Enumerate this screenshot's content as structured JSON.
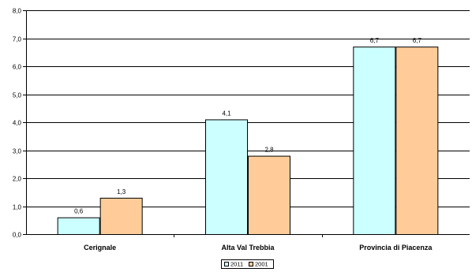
{
  "chart_data": {
    "type": "bar",
    "categories": [
      "Cerignale",
      "Alta Val Trebbia",
      "Provincia di Piacenza"
    ],
    "series": [
      {
        "name": "2011",
        "values": [
          0.6,
          4.1,
          6.7
        ],
        "value_labels": [
          "0,6",
          "4,1",
          "6,7"
        ],
        "color": "#ccffff"
      },
      {
        "name": "2001",
        "values": [
          1.3,
          2.8,
          6.7
        ],
        "value_labels": [
          "1,3",
          "2,8",
          "6,7"
        ],
        "color": "#ffcc99"
      }
    ],
    "ylim": [
      0,
      8
    ],
    "yticks": [
      0,
      1,
      2,
      3,
      4,
      5,
      6,
      7,
      8
    ],
    "ytick_labels": [
      "0,0",
      "1,0",
      "2,0",
      "3,0",
      "4,0",
      "5,0",
      "6,0",
      "7,0",
      "8,0"
    ],
    "title": "",
    "xlabel": "",
    "ylabel": "",
    "grid": true,
    "legend_position": "bottom-center"
  }
}
